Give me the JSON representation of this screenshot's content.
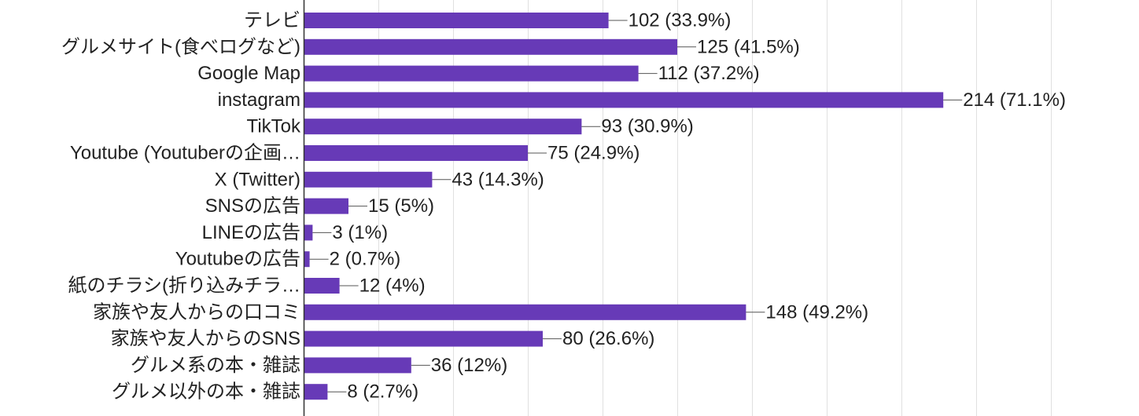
{
  "chart_data": {
    "type": "bar",
    "orientation": "horizontal",
    "title": "",
    "xlabel": "",
    "ylabel": "",
    "xlim": [
      0,
      250
    ],
    "gridlines": [
      0,
      50,
      100,
      150,
      200,
      250
    ],
    "grid": true,
    "bar_color": "#673ab7",
    "categories": [
      "テレビ",
      "グルメサイト(食べログなど)",
      "Google Map",
      "instagram",
      "TikTok",
      "Youtube (Youtuberの企画…",
      "X (Twitter)",
      "SNSの広告",
      "LINEの広告",
      "Youtubeの広告",
      "紙のチラシ(折り込みチラ…",
      "家族や友人からの口コミ",
      "家族や友人からのSNS",
      "グルメ系の本・雑誌",
      "グルメ以外の本・雑誌"
    ],
    "values": [
      102,
      125,
      112,
      214,
      93,
      75,
      43,
      15,
      3,
      2,
      12,
      148,
      80,
      36,
      8
    ],
    "data_labels": [
      "102 (33.9%)",
      "125 (41.5%)",
      "112 (37.2%)",
      "214 (71.1%)",
      "93 (30.9%)",
      "75 (24.9%)",
      "43 (14.3%)",
      "15 (5%)",
      "3 (1%)",
      "2 (0.7%)",
      "12 (4%)",
      "148 (49.2%)",
      "80 (26.6%)",
      "36 (12%)",
      "8 (2.7%)"
    ]
  }
}
